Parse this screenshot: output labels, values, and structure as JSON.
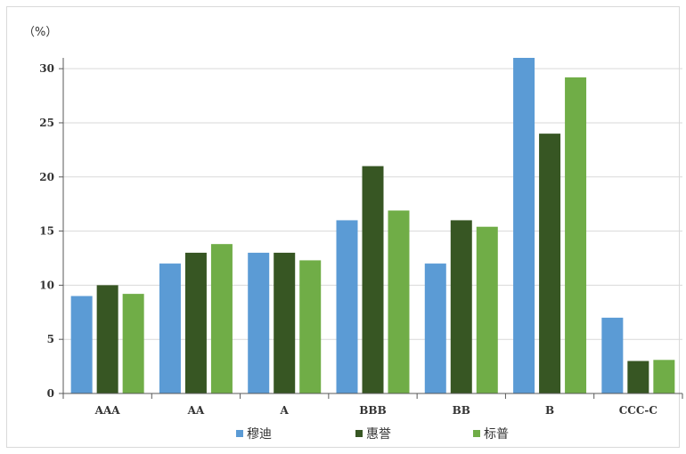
{
  "chart_data": {
    "type": "bar",
    "unit_label": "（%）",
    "categories": [
      "AAA",
      "AA",
      "A",
      "BBB",
      "BB",
      "B",
      "CCC-C"
    ],
    "series": [
      {
        "name": "穆迪",
        "color": "#5b9bd5",
        "values": [
          9,
          12,
          13,
          16,
          12,
          31,
          7
        ]
      },
      {
        "name": "惠誉",
        "color": "#375623",
        "values": [
          10,
          13,
          13,
          21,
          16,
          24,
          3
        ]
      },
      {
        "name": "标普",
        "color": "#70ad47",
        "values": [
          9.2,
          13.8,
          12.3,
          16.9,
          15.4,
          29.2,
          3.1
        ]
      }
    ],
    "ylim": [
      0,
      31
    ],
    "yticks": [
      0,
      5,
      10,
      15,
      20,
      25,
      30
    ],
    "grid": true,
    "legend_position": "bottom"
  }
}
